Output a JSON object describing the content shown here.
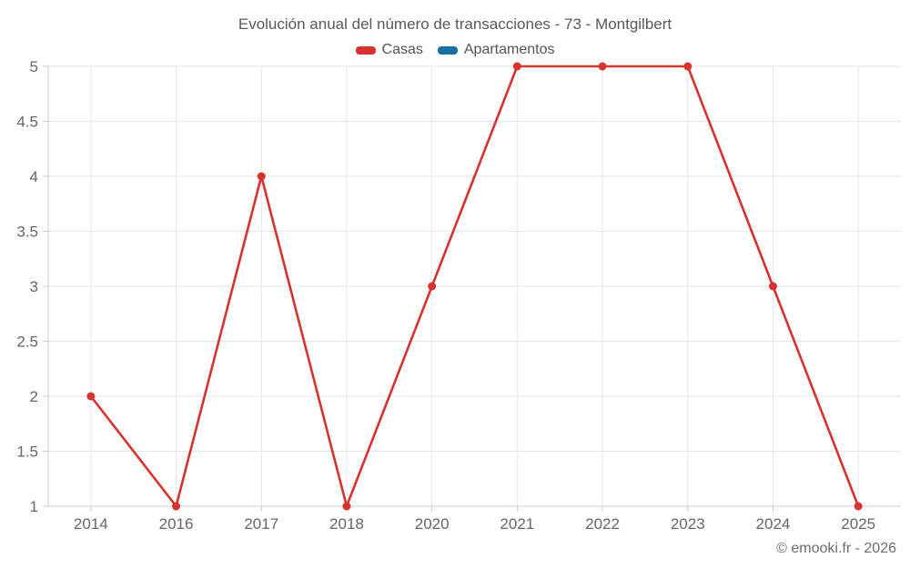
{
  "title": "Evolución anual del número de transacciones - 73 - Montgilbert",
  "footer": "© emooki.fr - 2026",
  "colors": {
    "casas": "#d4332f",
    "apartamentos": "#17709e",
    "grid": "#e6e6e6",
    "axis": "#cccccc",
    "axis_label": "#666666",
    "title_text": "#595959",
    "legend_text": "#545454",
    "footer_text": "#6d6d6d",
    "background": "#ffffff"
  },
  "chart_data": {
    "type": "line",
    "title": "Evolución anual del número de transacciones - 73 - Montgilbert",
    "categories": [
      "2014",
      "2016",
      "2017",
      "2018",
      "2020",
      "2021",
      "2022",
      "2023",
      "2024",
      "2025"
    ],
    "series": [
      {
        "name": "Casas",
        "color": "#d4332f",
        "values": [
          2,
          1,
          4,
          1,
          3,
          5,
          5,
          5,
          3,
          1
        ]
      },
      {
        "name": "Apartamentos",
        "color": "#17709e",
        "values": []
      }
    ],
    "xlabel": "",
    "ylabel": "",
    "ylim": [
      1,
      5
    ],
    "yticks": [
      1,
      1.5,
      2,
      2.5,
      3,
      3.5,
      4,
      4.5,
      5
    ],
    "grid": true,
    "legend_position": "top",
    "marker": "circle"
  }
}
